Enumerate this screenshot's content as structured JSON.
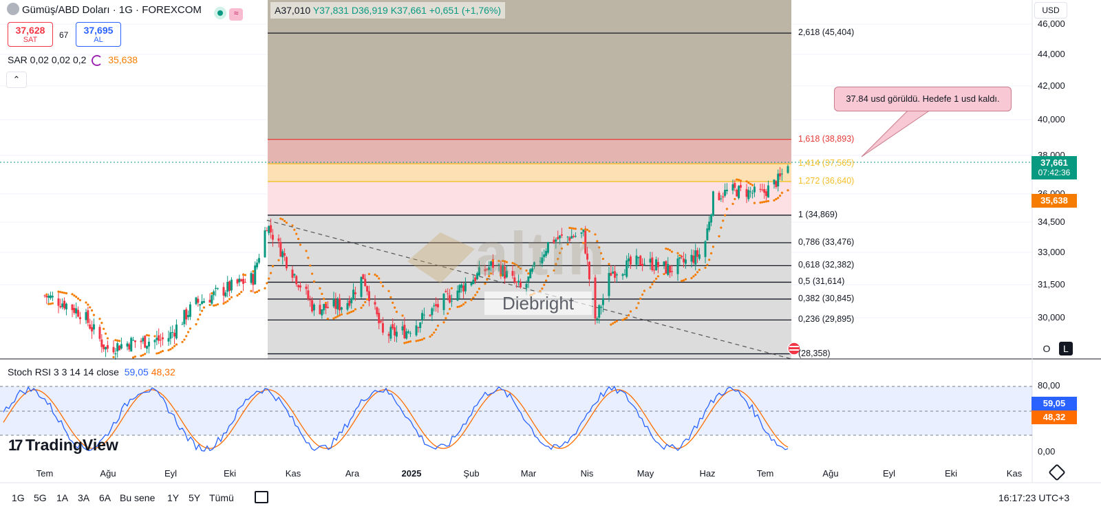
{
  "header": {
    "symbol_title": "Gümüş/ABD Doları · 1G · FOREXCOM",
    "sell": {
      "price": "37,628",
      "label": "SAT"
    },
    "spread": "67",
    "buy": {
      "price": "37,695",
      "label": "AL"
    },
    "sar_label": "SAR 0,02 0,02 0,2",
    "sar_value": "35,638",
    "collapse_icon": "chevron-up-icon",
    "ohlc": {
      "o": "A37,010",
      "h": "Y37,831",
      "l": "D36,919",
      "c": "K37,661",
      "change": "+0,651 (+1,76%)"
    }
  },
  "currency": "USD",
  "fib_levels": [
    {
      "label": "2,618 (45,404)",
      "value": 45.404
    },
    {
      "label": "1,618 (38,893)",
      "value": 38.893
    },
    {
      "label": "1,414 (37,565)",
      "value": 37.565
    },
    {
      "label": "1,272 (36,640)",
      "value": 36.64
    },
    {
      "label": "1 (34,869)",
      "value": 34.869
    },
    {
      "label": "0,786 (33,476)",
      "value": 33.476
    },
    {
      "label": "0,618 (32,382)",
      "value": 32.382
    },
    {
      "label": "0,5 (31,614)",
      "value": 31.614
    },
    {
      "label": "0,382 (30,845)",
      "value": 30.845
    },
    {
      "label": "0,236 (29,895)",
      "value": 29.895
    },
    {
      "label": "(28,358)",
      "value": 28.358
    }
  ],
  "callout_text": "37.84 usd görüldü. Hedefe 1 usd kaldı.",
  "price_tags": {
    "last": "37,661",
    "countdown": "07:42:36",
    "sar": "35,638",
    "colors": {
      "last": "#089981",
      "sar": "#f57c00"
    }
  },
  "watermark": {
    "brand": "altın",
    "name": "Diebright"
  },
  "stoch": {
    "label": "Stoch RSI 3 3 14 14 close",
    "k": "59,05",
    "d": "48,32",
    "k_color": "#2962ff",
    "d_color": "#ff6d00",
    "ticks": [
      "80,00",
      "0,00"
    ]
  },
  "logo": "TradingView",
  "timeframes": [
    "1G",
    "5G",
    "1A",
    "3A",
    "6A",
    "Bu sene",
    "1Y",
    "5Y",
    "Tümü"
  ],
  "clock": "16:17:23 UTC+3",
  "scale_buttons": {
    "o": "O",
    "l": "L"
  },
  "chart_data": {
    "type": "candlestick",
    "title": "",
    "x_ticks": [
      "Tem",
      "Ağu",
      "Eyl",
      "Eki",
      "Kas",
      "Ara",
      "2025",
      "Şub",
      "Mar",
      "Nis",
      "May",
      "Haz",
      "Tem",
      "Ağu",
      "Eyl",
      "Eki",
      "Kas"
    ],
    "y_ticks": [
      "46,000",
      "44,000",
      "42,000",
      "40,000",
      "38,000",
      "36,000",
      "34,500",
      "33,000",
      "31,500",
      "30,000"
    ],
    "y_tick_values": [
      46,
      44,
      42,
      40,
      38,
      36,
      34.5,
      33,
      31.5,
      30
    ],
    "ylim": [
      28.3,
      46.5
    ],
    "last_price": 37.661,
    "sar_last": 35.638,
    "anchors": [
      {
        "date": "2024-07-01",
        "close": 31.0
      },
      {
        "date": "2024-07-10",
        "close": 30.7
      },
      {
        "date": "2024-07-20",
        "close": 30.2
      },
      {
        "date": "2024-08-01",
        "close": 28.6
      },
      {
        "date": "2024-08-15",
        "close": 28.9
      },
      {
        "date": "2024-09-01",
        "close": 29.0
      },
      {
        "date": "2024-09-15",
        "close": 30.6
      },
      {
        "date": "2024-10-01",
        "close": 31.3
      },
      {
        "date": "2024-10-15",
        "close": 31.8
      },
      {
        "date": "2024-10-22",
        "close": 34.4
      },
      {
        "date": "2024-11-01",
        "close": 32.6
      },
      {
        "date": "2024-11-15",
        "close": 30.4
      },
      {
        "date": "2024-12-01",
        "close": 30.6
      },
      {
        "date": "2024-12-10",
        "close": 31.9
      },
      {
        "date": "2024-12-20",
        "close": 29.2
      },
      {
        "date": "2025-01-01",
        "close": 29.4
      },
      {
        "date": "2025-01-15",
        "close": 30.4
      },
      {
        "date": "2025-02-01",
        "close": 31.6
      },
      {
        "date": "2025-02-15",
        "close": 32.5
      },
      {
        "date": "2025-03-01",
        "close": 31.2
      },
      {
        "date": "2025-03-15",
        "close": 33.6
      },
      {
        "date": "2025-04-01",
        "close": 33.9
      },
      {
        "date": "2025-04-07",
        "close": 29.7
      },
      {
        "date": "2025-04-15",
        "close": 32.1
      },
      {
        "date": "2025-05-01",
        "close": 32.6
      },
      {
        "date": "2025-05-15",
        "close": 32.2
      },
      {
        "date": "2025-06-01",
        "close": 33.0
      },
      {
        "date": "2025-06-06",
        "close": 35.8
      },
      {
        "date": "2025-06-15",
        "close": 36.2
      },
      {
        "date": "2025-07-01",
        "close": 36.0
      },
      {
        "date": "2025-07-10",
        "close": 36.8
      },
      {
        "date": "2025-07-14",
        "close": 37.66
      }
    ]
  }
}
